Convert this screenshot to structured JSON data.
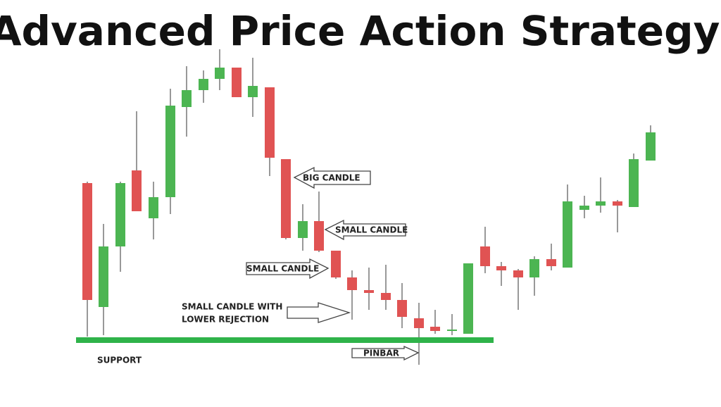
{
  "header": {
    "title": "Advanced Price Action Strategy"
  },
  "labels": {
    "big_candle": "BIG CANDLE",
    "small_candle_upper": "SMALL CANDLE",
    "small_candle_lower": "SMALL CANDLE",
    "rejection": [
      "SMALL CANDLE WITH",
      "LOWER REJECTION"
    ],
    "pinbar": "PINBAR",
    "support": "SUPPORT"
  }
}
